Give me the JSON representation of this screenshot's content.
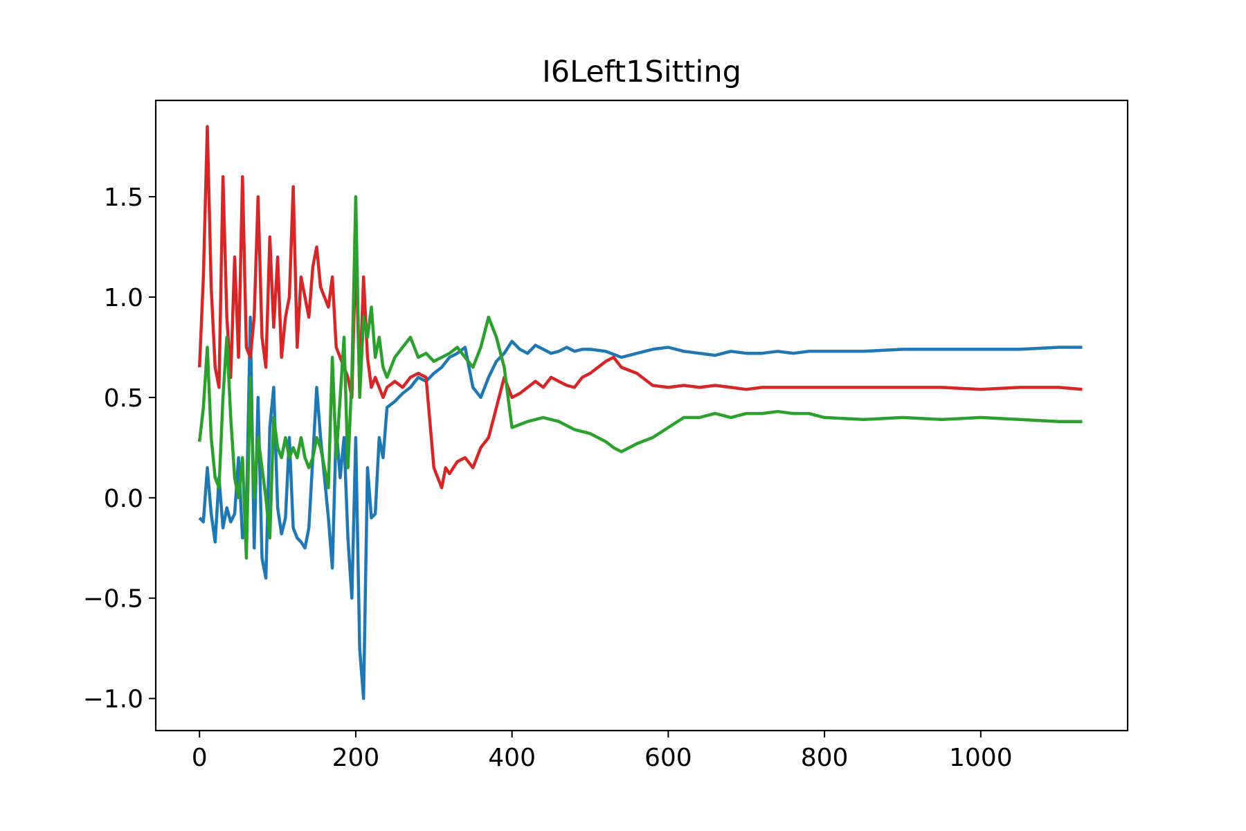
{
  "chart_data": {
    "type": "line",
    "title": "I6Left1Sitting",
    "xlabel": "",
    "ylabel": "",
    "xlim": [
      -56,
      1188
    ],
    "ylim": [
      -1.16,
      1.98
    ],
    "xticks": [
      0,
      200,
      400,
      600,
      800,
      1000
    ],
    "yticks": [
      -1.0,
      -0.5,
      0.0,
      0.5,
      1.0,
      1.5
    ],
    "xtick_labels": [
      "0",
      "200",
      "400",
      "600",
      "800",
      "1000"
    ],
    "ytick_labels": [
      "−1.0",
      "−0.5",
      "0.0",
      "0.5",
      "1.0",
      "1.5"
    ],
    "grid": false,
    "legend": "none",
    "series": [
      {
        "color": "#1f77b4",
        "x": [
          0,
          5,
          10,
          15,
          20,
          25,
          30,
          35,
          40,
          45,
          50,
          55,
          60,
          65,
          70,
          75,
          80,
          85,
          90,
          95,
          100,
          105,
          110,
          115,
          120,
          125,
          130,
          135,
          140,
          145,
          150,
          155,
          160,
          165,
          170,
          175,
          180,
          185,
          190,
          195,
          200,
          205,
          210,
          215,
          220,
          225,
          230,
          235,
          240,
          250,
          260,
          270,
          280,
          290,
          300,
          310,
          320,
          330,
          340,
          350,
          360,
          370,
          380,
          390,
          400,
          410,
          420,
          430,
          440,
          450,
          460,
          470,
          480,
          490,
          500,
          520,
          540,
          560,
          580,
          600,
          620,
          640,
          660,
          680,
          700,
          720,
          740,
          760,
          780,
          800,
          850,
          900,
          950,
          1000,
          1050,
          1100,
          1130
        ],
        "y": [
          -0.1,
          -0.12,
          0.15,
          -0.08,
          -0.22,
          0.1,
          -0.15,
          -0.05,
          -0.12,
          -0.08,
          0.2,
          -0.2,
          -0.1,
          0.9,
          -0.25,
          0.5,
          -0.3,
          -0.4,
          0.35,
          0.55,
          -0.05,
          -0.18,
          -0.1,
          0.3,
          -0.15,
          -0.2,
          -0.22,
          -0.25,
          -0.15,
          0.2,
          0.55,
          0.3,
          0.1,
          -0.1,
          -0.35,
          0.35,
          0.1,
          0.3,
          -0.2,
          -0.5,
          0.3,
          -0.75,
          -1.0,
          0.15,
          -0.1,
          -0.08,
          0.3,
          0.2,
          0.45,
          0.48,
          0.52,
          0.55,
          0.6,
          0.58,
          0.62,
          0.65,
          0.7,
          0.72,
          0.75,
          0.55,
          0.5,
          0.6,
          0.68,
          0.72,
          0.78,
          0.74,
          0.72,
          0.76,
          0.74,
          0.72,
          0.73,
          0.75,
          0.73,
          0.74,
          0.74,
          0.73,
          0.7,
          0.72,
          0.74,
          0.75,
          0.73,
          0.72,
          0.71,
          0.73,
          0.72,
          0.72,
          0.73,
          0.72,
          0.73,
          0.73,
          0.73,
          0.74,
          0.74,
          0.74,
          0.74,
          0.75,
          0.75
        ]
      },
      {
        "color": "#d62728",
        "x": [
          0,
          5,
          10,
          15,
          20,
          25,
          30,
          35,
          40,
          45,
          50,
          55,
          60,
          65,
          70,
          75,
          80,
          85,
          90,
          95,
          100,
          105,
          110,
          115,
          120,
          125,
          130,
          135,
          140,
          145,
          150,
          155,
          160,
          165,
          170,
          175,
          180,
          185,
          190,
          195,
          200,
          205,
          210,
          215,
          220,
          225,
          230,
          235,
          240,
          250,
          260,
          270,
          280,
          290,
          300,
          305,
          310,
          315,
          320,
          330,
          340,
          350,
          360,
          370,
          380,
          390,
          400,
          410,
          420,
          430,
          440,
          450,
          460,
          470,
          480,
          490,
          500,
          520,
          530,
          540,
          560,
          580,
          600,
          620,
          640,
          660,
          680,
          700,
          720,
          740,
          760,
          780,
          800,
          850,
          900,
          950,
          1000,
          1050,
          1100,
          1130
        ],
        "y": [
          0.65,
          1.1,
          1.85,
          1.05,
          0.65,
          0.55,
          1.6,
          0.9,
          0.6,
          1.2,
          0.7,
          1.6,
          0.75,
          0.7,
          0.9,
          1.5,
          0.8,
          0.65,
          1.3,
          0.85,
          1.2,
          0.7,
          0.9,
          1.0,
          1.55,
          0.75,
          1.1,
          1.0,
          0.9,
          1.15,
          1.25,
          1.05,
          1.0,
          0.95,
          1.1,
          0.75,
          0.7,
          0.65,
          0.6,
          0.5,
          1.25,
          0.55,
          1.1,
          0.7,
          0.55,
          0.6,
          0.55,
          0.5,
          0.55,
          0.58,
          0.55,
          0.6,
          0.62,
          0.6,
          0.15,
          0.1,
          0.05,
          0.15,
          0.12,
          0.18,
          0.2,
          0.15,
          0.25,
          0.3,
          0.45,
          0.6,
          0.5,
          0.52,
          0.55,
          0.58,
          0.55,
          0.6,
          0.58,
          0.56,
          0.55,
          0.6,
          0.62,
          0.68,
          0.7,
          0.65,
          0.62,
          0.56,
          0.55,
          0.56,
          0.55,
          0.56,
          0.55,
          0.54,
          0.55,
          0.55,
          0.55,
          0.55,
          0.55,
          0.55,
          0.55,
          0.55,
          0.54,
          0.55,
          0.55,
          0.54
        ]
      },
      {
        "color": "#2ca02c",
        "x": [
          0,
          5,
          10,
          15,
          20,
          25,
          30,
          35,
          40,
          45,
          50,
          55,
          60,
          65,
          70,
          75,
          80,
          85,
          90,
          95,
          100,
          105,
          110,
          115,
          120,
          125,
          130,
          135,
          140,
          145,
          150,
          155,
          160,
          165,
          170,
          175,
          180,
          185,
          190,
          195,
          200,
          205,
          210,
          215,
          220,
          225,
          230,
          235,
          240,
          250,
          260,
          270,
          280,
          290,
          300,
          310,
          320,
          330,
          340,
          350,
          360,
          370,
          380,
          390,
          400,
          420,
          440,
          460,
          480,
          500,
          520,
          530,
          540,
          560,
          580,
          600,
          620,
          640,
          660,
          680,
          700,
          720,
          740,
          760,
          780,
          800,
          850,
          900,
          950,
          1000,
          1050,
          1100,
          1130
        ],
        "y": [
          0.28,
          0.45,
          0.75,
          0.3,
          0.1,
          0.05,
          0.5,
          0.8,
          0.4,
          0.1,
          0.0,
          0.2,
          -0.3,
          0.6,
          0.0,
          0.3,
          0.15,
          0.0,
          -0.2,
          0.4,
          0.25,
          0.2,
          0.3,
          0.2,
          0.25,
          0.2,
          0.3,
          0.2,
          0.15,
          0.2,
          0.3,
          0.25,
          0.15,
          0.05,
          0.7,
          0.2,
          0.5,
          0.8,
          0.15,
          0.6,
          1.5,
          0.5,
          0.9,
          0.8,
          0.95,
          0.7,
          0.8,
          0.65,
          0.6,
          0.7,
          0.75,
          0.8,
          0.7,
          0.72,
          0.68,
          0.7,
          0.72,
          0.75,
          0.7,
          0.65,
          0.75,
          0.9,
          0.8,
          0.65,
          0.35,
          0.38,
          0.4,
          0.38,
          0.34,
          0.32,
          0.28,
          0.25,
          0.23,
          0.27,
          0.3,
          0.35,
          0.4,
          0.4,
          0.42,
          0.4,
          0.42,
          0.42,
          0.43,
          0.42,
          0.42,
          0.4,
          0.39,
          0.4,
          0.39,
          0.4,
          0.39,
          0.38,
          0.38
        ]
      }
    ]
  }
}
